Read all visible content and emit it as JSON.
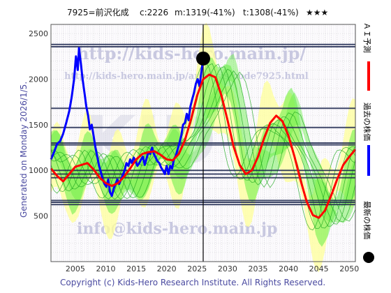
{
  "header": {
    "title": "7925=前沢化成",
    "current": "c:2226",
    "m_value": "m:1319(-41%)",
    "t_value": "t:1308(-41%)",
    "stars": "★★★"
  },
  "side_text": "Generated on Monday 2026/1/5.",
  "legend": {
    "ai_forecast": "ＡＩ予測",
    "past_price": "過去の株価",
    "latest_price": "最新の株価"
  },
  "watermarks": {
    "url_main": "http://kids-hero.main.jp/",
    "url_analysis": "http://kids-hero.main.jp/analysis/code7925.html",
    "email": "info@kids-hero.main.jp",
    "brand": "KID"
  },
  "footer": "Copyright (c) Kids-Hero Research Institute. All Rights Reserved.",
  "colors": {
    "ai_forecast": "#ff0000",
    "past_price": "#0000ff",
    "latest_price": "#000000",
    "envelope_fill": "#ffff99",
    "scenario_fill": "#66ee44",
    "scenario_line": "#22aa22",
    "grid": "#cccccc",
    "axis_text": "#333333",
    "plot_bg": "#ffffff",
    "watermark_url": "#c8c8e0",
    "hline": "#1e2850"
  },
  "chart_data": {
    "type": "line",
    "xlim": [
      2001,
      2051
    ],
    "ylim": [
      0,
      2600
    ],
    "x_ticks": [
      2005,
      2010,
      2015,
      2020,
      2025,
      2030,
      2035,
      2040,
      2045,
      2050
    ],
    "y_ticks": [
      500,
      1000,
      1500,
      2000,
      2500
    ],
    "vline_x": 2026.0,
    "latest_point": {
      "x": 2026.0,
      "y": 2226
    },
    "horizontal_levels": [
      2380,
      2355,
      1680,
      1470,
      1300,
      1280,
      1000,
      960,
      920,
      670,
      650,
      625
    ],
    "series": [
      {
        "name": "過去の株価",
        "color": "#0000ff",
        "points": [
          [
            2001.0,
            1120
          ],
          [
            2001.5,
            1200
          ],
          [
            2002.0,
            1290
          ],
          [
            2002.5,
            1320
          ],
          [
            2003.0,
            1400
          ],
          [
            2003.5,
            1520
          ],
          [
            2004.0,
            1650
          ],
          [
            2004.4,
            1800
          ],
          [
            2004.8,
            2000
          ],
          [
            2005.1,
            2250
          ],
          [
            2005.4,
            2100
          ],
          [
            2005.6,
            2340
          ],
          [
            2005.9,
            2180
          ],
          [
            2006.2,
            2000
          ],
          [
            2006.5,
            1850
          ],
          [
            2006.8,
            1700
          ],
          [
            2007.1,
            1600
          ],
          [
            2007.4,
            1450
          ],
          [
            2007.7,
            1500
          ],
          [
            2008.0,
            1380
          ],
          [
            2008.3,
            1250
          ],
          [
            2008.6,
            1150
          ],
          [
            2008.9,
            1050
          ],
          [
            2009.2,
            980
          ],
          [
            2009.5,
            900
          ],
          [
            2009.8,
            850
          ],
          [
            2010.1,
            820
          ],
          [
            2010.4,
            900
          ],
          [
            2010.7,
            760
          ],
          [
            2011.0,
            720
          ],
          [
            2011.3,
            800
          ],
          [
            2011.6,
            850
          ],
          [
            2011.9,
            900
          ],
          [
            2012.2,
            850
          ],
          [
            2012.5,
            900
          ],
          [
            2012.8,
            950
          ],
          [
            2013.1,
            1000
          ],
          [
            2013.4,
            1080
          ],
          [
            2013.7,
            1050
          ],
          [
            2014.0,
            1120
          ],
          [
            2014.3,
            1080
          ],
          [
            2014.6,
            1140
          ],
          [
            2014.9,
            1100
          ],
          [
            2015.2,
            1050
          ],
          [
            2015.5,
            1080
          ],
          [
            2015.8,
            1120
          ],
          [
            2016.1,
            1150
          ],
          [
            2016.4,
            1060
          ],
          [
            2016.7,
            1130
          ],
          [
            2017.0,
            1200
          ],
          [
            2017.3,
            1180
          ],
          [
            2017.6,
            1250
          ],
          [
            2017.9,
            1180
          ],
          [
            2018.2,
            1140
          ],
          [
            2018.5,
            1100
          ],
          [
            2018.8,
            1080
          ],
          [
            2019.1,
            1030
          ],
          [
            2019.4,
            1000
          ],
          [
            2019.7,
            960
          ],
          [
            2020.0,
            1050
          ],
          [
            2020.3,
            960
          ],
          [
            2020.6,
            1050
          ],
          [
            2020.9,
            1020
          ],
          [
            2021.2,
            1120
          ],
          [
            2021.5,
            1160
          ],
          [
            2021.8,
            1230
          ],
          [
            2022.1,
            1300
          ],
          [
            2022.4,
            1380
          ],
          [
            2022.7,
            1500
          ],
          [
            2023.0,
            1520
          ],
          [
            2023.3,
            1620
          ],
          [
            2023.6,
            1550
          ],
          [
            2023.9,
            1700
          ],
          [
            2024.2,
            1780
          ],
          [
            2024.5,
            1850
          ],
          [
            2024.8,
            1950
          ],
          [
            2025.1,
            2000
          ],
          [
            2025.4,
            1920
          ],
          [
            2025.7,
            2080
          ],
          [
            2026.0,
            2226
          ]
        ]
      },
      {
        "name": "ＡＩ予測",
        "color": "#ff0000",
        "points": [
          [
            2001.0,
            1020
          ],
          [
            2002.0,
            940
          ],
          [
            2003.0,
            880
          ],
          [
            2004.0,
            960
          ],
          [
            2005.0,
            1040
          ],
          [
            2006.0,
            1060
          ],
          [
            2007.0,
            1080
          ],
          [
            2008.0,
            1010
          ],
          [
            2009.0,
            920
          ],
          [
            2010.0,
            860
          ],
          [
            2011.0,
            830
          ],
          [
            2012.0,
            860
          ],
          [
            2013.0,
            930
          ],
          [
            2014.0,
            1020
          ],
          [
            2015.0,
            1120
          ],
          [
            2016.0,
            1180
          ],
          [
            2017.0,
            1200
          ],
          [
            2018.0,
            1210
          ],
          [
            2019.0,
            1170
          ],
          [
            2020.0,
            1120
          ],
          [
            2021.0,
            1110
          ],
          [
            2022.0,
            1180
          ],
          [
            2023.0,
            1330
          ],
          [
            2024.0,
            1560
          ],
          [
            2025.0,
            1820
          ],
          [
            2026.0,
            2000
          ],
          [
            2027.0,
            2050
          ],
          [
            2028.0,
            2020
          ],
          [
            2029.0,
            1820
          ],
          [
            2030.0,
            1550
          ],
          [
            2031.0,
            1260
          ],
          [
            2032.0,
            1060
          ],
          [
            2033.0,
            960
          ],
          [
            2034.0,
            1000
          ],
          [
            2035.0,
            1150
          ],
          [
            2036.0,
            1350
          ],
          [
            2037.0,
            1520
          ],
          [
            2038.0,
            1600
          ],
          [
            2039.0,
            1540
          ],
          [
            2040.0,
            1380
          ],
          [
            2041.0,
            1150
          ],
          [
            2042.0,
            890
          ],
          [
            2043.0,
            660
          ],
          [
            2044.0,
            510
          ],
          [
            2045.0,
            480
          ],
          [
            2046.0,
            560
          ],
          [
            2047.0,
            720
          ],
          [
            2048.0,
            900
          ],
          [
            2049.0,
            1060
          ],
          [
            2050.0,
            1150
          ],
          [
            2051.0,
            1230
          ]
        ]
      }
    ]
  }
}
